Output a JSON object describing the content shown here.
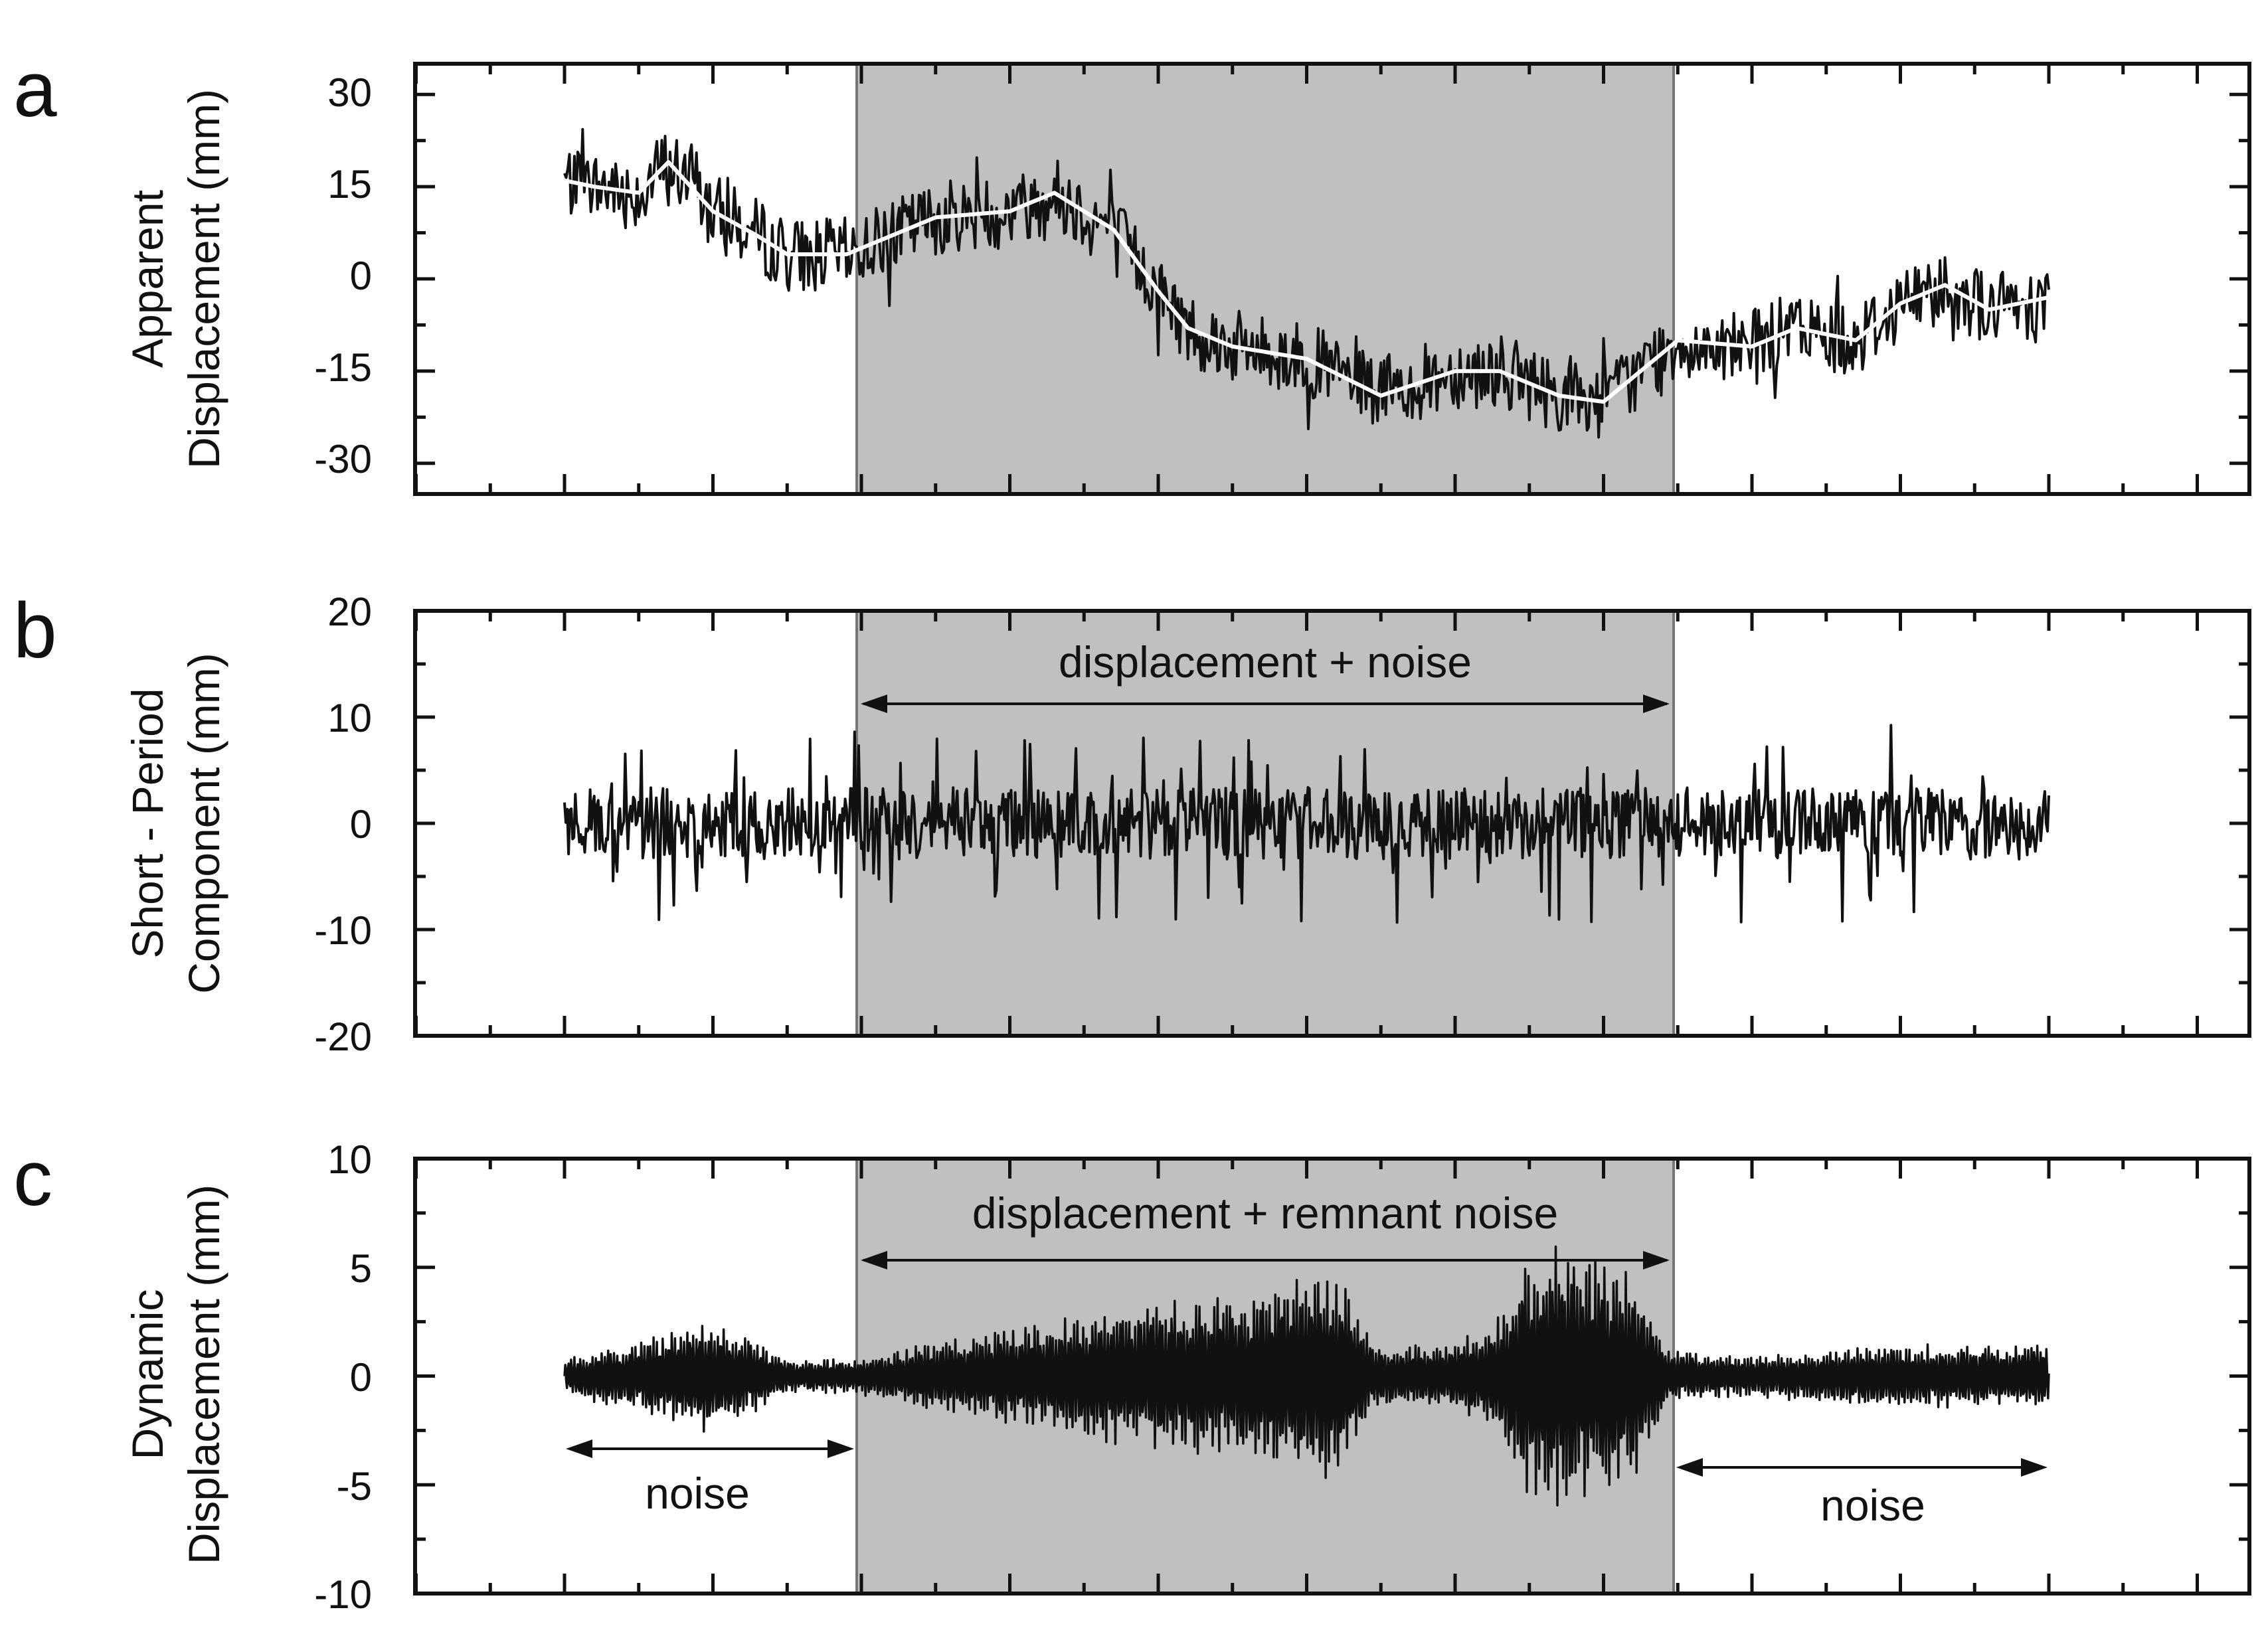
{
  "chart_data": [
    {
      "panel": "a",
      "type": "line",
      "ylabel": [
        "Apparent",
        "Displacement (mm)"
      ],
      "ylim": [
        -35,
        35
      ],
      "yticks": [
        30,
        15,
        0,
        -15,
        -30
      ],
      "x_ticks_labeled": false,
      "shaded_region": {
        "x": [
          0.195,
          0.745
        ]
      },
      "series": [
        {
          "name": "",
          "style": "black-noisy",
          "x": [
            0.0,
            0.02,
            0.05,
            0.07,
            0.1,
            0.13,
            0.15,
            0.19,
            0.25,
            0.3,
            0.33,
            0.37,
            0.4,
            0.42,
            0.45,
            0.5,
            0.55,
            0.6,
            0.63,
            0.67,
            0.7,
            0.72,
            0.75,
            0.8,
            0.83,
            0.87,
            0.9,
            0.93,
            0.96,
            1.0
          ],
          "y": [
            16,
            15,
            14,
            19,
            11,
            7,
            4,
            4,
            10,
            11,
            14,
            8,
            -2,
            -8,
            -11,
            -13,
            -19,
            -15,
            -15,
            -19,
            -20,
            -16,
            -10,
            -11,
            -8,
            -10,
            -4,
            -1,
            -5,
            -3
          ]
        },
        {
          "name": "",
          "style": "white-smooth",
          "x": [
            0.0,
            0.02,
            0.05,
            0.07,
            0.1,
            0.13,
            0.15,
            0.19,
            0.25,
            0.3,
            0.33,
            0.37,
            0.4,
            0.42,
            0.45,
            0.5,
            0.55,
            0.6,
            0.63,
            0.67,
            0.7,
            0.72,
            0.75,
            0.8,
            0.83,
            0.87,
            0.9,
            0.93,
            0.96,
            1.0
          ],
          "y": [
            16,
            15,
            14,
            19,
            11,
            7,
            4,
            4,
            10,
            11,
            14,
            8,
            -2,
            -8,
            -11,
            -13,
            -19,
            -15,
            -15,
            -19,
            -20,
            -16,
            -10,
            -11,
            -8,
            -10,
            -4,
            -1,
            -5,
            -3
          ]
        }
      ]
    },
    {
      "panel": "b",
      "type": "line",
      "ylabel": [
        "Short - Period",
        "Component (mm)"
      ],
      "ylim": [
        -20,
        20
      ],
      "yticks": [
        20,
        10,
        0,
        -10,
        -20
      ],
      "x_ticks_labeled": false,
      "shaded_region": {
        "x": [
          0.195,
          0.745
        ]
      },
      "annotations": [
        {
          "text": "displacement + noise",
          "arrow_x": [
            0.195,
            0.745
          ]
        }
      ],
      "series": [
        {
          "name": "",
          "amplitude_mm": 7.5,
          "peak_range_mm": [
            -10,
            10
          ]
        }
      ]
    },
    {
      "panel": "c",
      "type": "line",
      "ylabel": [
        "Dynamic",
        "Displacement (mm)"
      ],
      "ylim": [
        -10,
        10
      ],
      "yticks": [
        10,
        5,
        0,
        -5,
        -10
      ],
      "x_ticks_labeled": false,
      "shaded_region": {
        "x": [
          0.195,
          0.745
        ]
      },
      "annotations": [
        {
          "text": "displacement + remnant noise",
          "arrow_x": [
            0.195,
            0.745
          ]
        },
        {
          "text": "noise",
          "arrow_x": [
            0.0,
            0.195
          ]
        },
        {
          "text": "noise",
          "arrow_x": [
            0.745,
            1.0
          ]
        }
      ],
      "series": [
        {
          "name": "",
          "envelope": {
            "x": [
              0.0,
              0.1,
              0.15,
              0.195,
              0.28,
              0.4,
              0.5,
              0.52,
              0.545,
              0.57,
              0.6,
              0.63,
              0.65,
              0.68,
              0.72,
              0.745,
              0.8,
              0.9,
              1.0
            ],
            "amp": [
              0.8,
              2.8,
              0.8,
              0.8,
              2.0,
              3.5,
              4.5,
              5.0,
              1.5,
              1.5,
              1.5,
              3.0,
              6.0,
              6.2,
              5.0,
              1.2,
              1.0,
              1.5,
              1.5
            ]
          }
        }
      ]
    }
  ],
  "panel_labels": [
    "a",
    "b",
    "c"
  ],
  "colors": {
    "shade": "#c0c0c0",
    "trace": "#111111",
    "smooth": "#ffffff"
  }
}
